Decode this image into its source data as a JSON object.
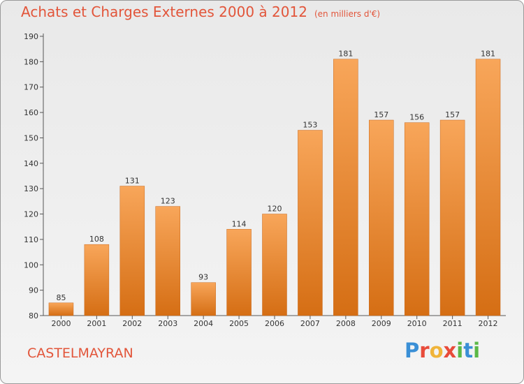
{
  "header": {
    "title": "Achats et Charges Externes 2000 à 2012",
    "unit": "(en milliers d'€)"
  },
  "footer": {
    "commune": "CASTELMAYRAN",
    "brand": "Proxiti",
    "brand_colors": [
      "#3a8fd6",
      "#e84b3a",
      "#f0b43a",
      "#e84b3a",
      "#5bb847",
      "#3a8fd6",
      "#5bb847"
    ]
  },
  "chart_data": {
    "type": "bar",
    "title": "Achats et Charges Externes 2000 à 2012",
    "subtitle": "(en milliers d'€)",
    "xlabel": "",
    "ylabel": "",
    "categories": [
      "2000",
      "2001",
      "2002",
      "2003",
      "2004",
      "2005",
      "2006",
      "2007",
      "2008",
      "2009",
      "2010",
      "2011",
      "2012"
    ],
    "values": [
      85,
      108,
      131,
      123,
      93,
      114,
      120,
      153,
      181,
      157,
      156,
      157,
      181
    ],
    "ylim": [
      80,
      190
    ],
    "yticks": [
      80,
      90,
      100,
      110,
      120,
      130,
      140,
      150,
      160,
      170,
      180,
      190
    ],
    "grid": false,
    "bar_color_top": "#f8a65a",
    "bar_color_bottom": "#d56e14"
  }
}
